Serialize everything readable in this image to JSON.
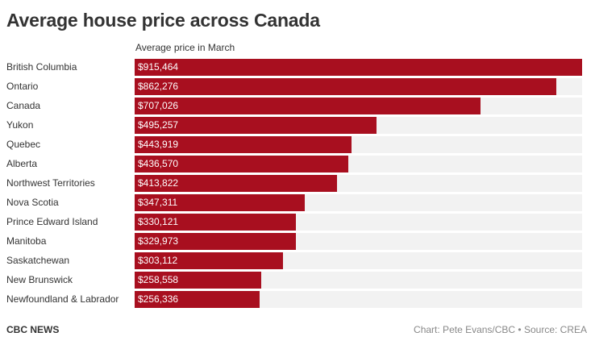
{
  "header": {
    "title": "Average house price across Canada"
  },
  "footer": {
    "brand": "CBC NEWS",
    "credit": "Chart: Pete Evans/CBC • Source: CREA"
  },
  "colors": {
    "bar": "#a80f1f",
    "track": "#f2f2f2"
  },
  "chart_data": {
    "type": "bar",
    "orientation": "horizontal",
    "title": "Average house price across Canada",
    "value_header": "Average price in March",
    "categories": [
      "British Columbia",
      "Ontario",
      "Canada",
      "Yukon",
      "Quebec",
      "Alberta",
      "Northwest Territories",
      "Nova Scotia",
      "Prince Edward Island",
      "Manitoba",
      "Saskatchewan",
      "New Brunswick",
      "Newfoundland & Labrador"
    ],
    "values": [
      915464,
      862276,
      707026,
      495257,
      443919,
      436570,
      413822,
      347311,
      330121,
      329973,
      303112,
      258558,
      256336
    ],
    "value_labels": [
      "$915,464",
      "$862,276",
      "$707,026",
      "$495,257",
      "$443,919",
      "$436,570",
      "$413,822",
      "$347,311",
      "$330,121",
      "$329,973",
      "$303,112",
      "$258,558",
      "$256,336"
    ],
    "xlim": [
      0,
      915464
    ],
    "grid": false,
    "legend": "none"
  }
}
